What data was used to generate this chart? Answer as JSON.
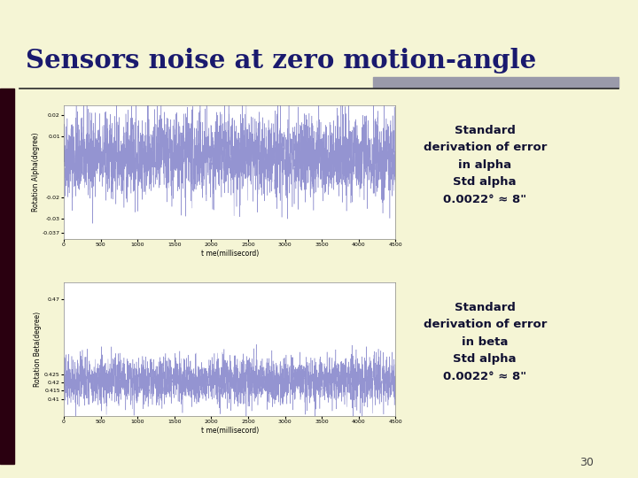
{
  "title": "Sensors noise at zero motion-angle",
  "title_color": "#1a1a6e",
  "bg_color": "#f5f5d5",
  "plot_bg": "#ffffff",
  "separator_color": "#2a2a2a",
  "accent_rect_color": "#9a9aaa",
  "text1_lines": [
    "Standard",
    "derivation of error",
    "in alpha",
    "Std alpha",
    "0.0022° ≈ 8\""
  ],
  "text2_lines": [
    "Standard",
    "derivation of error",
    "in beta",
    "Std alpha",
    "0.0022° ≈ 8\""
  ],
  "alpha_xlabel": "t me(millisecord)",
  "alpha_ylabel": "Rotation Alpha(degree)",
  "alpha_xlim": [
    0,
    4500
  ],
  "alpha_ylim": [
    -0.04,
    0.025
  ],
  "beta_xlabel": "t me(millisecord)",
  "beta_ylabel": "Rotation Beta(degree)",
  "beta_xlim": [
    0,
    4500
  ],
  "beta_ylim": [
    0.4,
    0.48
  ],
  "line_color": "#8888cc",
  "page_number": "30",
  "seed": 42,
  "left_bar_color": "#2a0010",
  "text_color": "#111133"
}
